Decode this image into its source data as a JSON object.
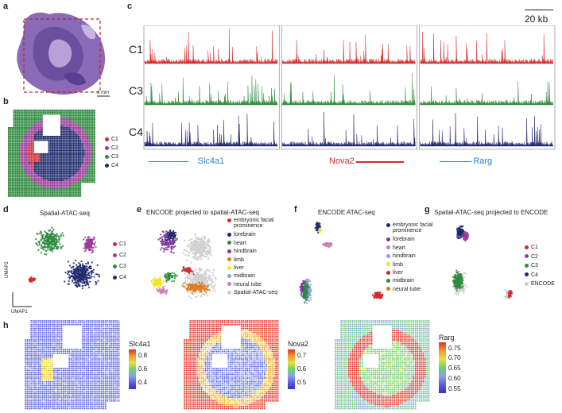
{
  "panels": {
    "a": {
      "label": "a",
      "scale_bar": "1 mm"
    },
    "b": {
      "label": "b",
      "legend": [
        {
          "name": "C1",
          "color": "#d12a2f"
        },
        {
          "name": "C2",
          "color": "#9b3a99"
        },
        {
          "name": "C3",
          "color": "#2e8b3e"
        },
        {
          "name": "C4",
          "color": "#1e2a6b"
        }
      ]
    },
    "c": {
      "label": "c",
      "scale_bar": "20 kb",
      "tracks": [
        {
          "name": "C1",
          "color": "#d42a2a"
        },
        {
          "name": "C3",
          "color": "#2a8a3a"
        },
        {
          "name": "C4",
          "color": "#1d2566"
        }
      ],
      "genes": [
        {
          "name": "Slc4a1",
          "color": "#2b83c6"
        },
        {
          "name": "Nova2",
          "color": "#d42a2a"
        },
        {
          "name": "Rarg",
          "color": "#2b83c6"
        }
      ]
    },
    "d": {
      "label": "d",
      "title": "Spatial-ATAC-seq",
      "axis_x": "UMAP1",
      "axis_y": "UMAP2",
      "legend": [
        {
          "name": "C1",
          "color": "#d12a2f"
        },
        {
          "name": "C2",
          "color": "#9b3a99"
        },
        {
          "name": "C3",
          "color": "#2e8b3e"
        },
        {
          "name": "C4",
          "color": "#1e2a6b"
        }
      ]
    },
    "e": {
      "label": "e",
      "title": "ENCODE projected to spatial-ATAC-seq",
      "legend": [
        {
          "name": "embryonic facial",
          "name2": "prominence",
          "color": "#d12a2f"
        },
        {
          "name": "forebrain",
          "color": "#1e2a6b"
        },
        {
          "name": "heart",
          "color": "#2e8b3e"
        },
        {
          "name": "hindbrain",
          "color": "#7a3a9a"
        },
        {
          "name": "limb",
          "color": "#e07b20"
        },
        {
          "name": "liver",
          "color": "#f3e21c"
        },
        {
          "name": "midbrain",
          "color": "#8aa2d8"
        },
        {
          "name": "neural tube",
          "color": "#d27ab8"
        },
        {
          "name": "Spatial-ATAC-seq",
          "color": "#cfcfcf"
        }
      ]
    },
    "f": {
      "label": "f",
      "title": "ENCODE ATAC-seq",
      "legend": [
        {
          "name": "embryonic facial",
          "name2": "prominence",
          "color": "#1e2a6b"
        },
        {
          "name": "forebrain",
          "color": "#7a3a9a"
        },
        {
          "name": "heart",
          "color": "#d27ab8"
        },
        {
          "name": "hindbrain",
          "color": "#8aa2d8"
        },
        {
          "name": "limb",
          "color": "#f3e21c"
        },
        {
          "name": "liver",
          "color": "#d12a2f"
        },
        {
          "name": "midbrain",
          "color": "#2e8b3e"
        },
        {
          "name": "neural tube",
          "color": "#e07b20"
        }
      ]
    },
    "g": {
      "label": "g",
      "title": "Spatial-ATAC-seq projected to ENCODE",
      "legend": [
        {
          "name": "C1",
          "color": "#d12a2f"
        },
        {
          "name": "C2",
          "color": "#9b3a99"
        },
        {
          "name": "C3",
          "color": "#2e8b3e"
        },
        {
          "name": "C4",
          "color": "#1e2a6b"
        },
        {
          "name": "ENCODE",
          "color": "#cfcfcf"
        }
      ]
    },
    "h": {
      "label": "h",
      "maps": [
        {
          "gene": "Slc4a1",
          "ticks": [
            "0.8",
            "0.6",
            "0.4"
          ]
        },
        {
          "gene": "Nova2",
          "ticks": [
            "0.7",
            "0.6",
            "0.5"
          ]
        },
        {
          "gene": "Rarg",
          "ticks": [
            "0.75",
            "0.70",
            "0.65",
            "0.60",
            "0.55"
          ]
        }
      ]
    }
  }
}
